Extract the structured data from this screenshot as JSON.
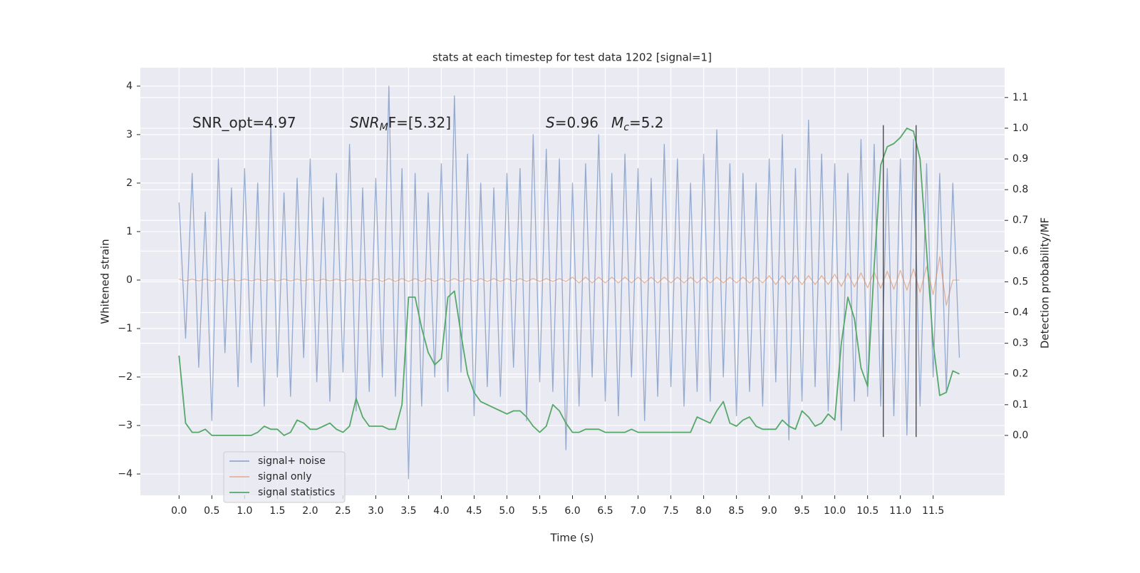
{
  "chart_data": {
    "type": "line",
    "title": "stats at each timestep for test data 1202 [signal=1]",
    "xlabel": "Time (s)",
    "ylabel": "Whitened strain",
    "y2label": "Detection probability/MF",
    "annotations": [
      {
        "text": "SNR_opt=4.97"
      },
      {
        "text": "SNR",
        "sub": "M",
        "tail": "F=[5.32]"
      },
      {
        "text": "S",
        "tail": "=0.96"
      },
      {
        "text": "M",
        "sub": "c",
        "tail": "=5.2"
      }
    ],
    "xlim": [
      -0.59,
      12.59
    ],
    "ylim": [
      -4.44,
      4.38
    ],
    "y2lim": [
      -0.195,
      1.197
    ],
    "xticks": [
      {
        "value": 0,
        "label": "0.0"
      },
      {
        "value": 0.5,
        "label": "0.5"
      },
      {
        "value": 1,
        "label": "1.0"
      },
      {
        "value": 1.5,
        "label": "1.5"
      },
      {
        "value": 2,
        "label": "2.0"
      },
      {
        "value": 2.5,
        "label": "2.5"
      },
      {
        "value": 3,
        "label": "3.0"
      },
      {
        "value": 3.5,
        "label": "3.5"
      },
      {
        "value": 4,
        "label": "4.0"
      },
      {
        "value": 4.5,
        "label": "4.5"
      },
      {
        "value": 5,
        "label": "5.0"
      },
      {
        "value": 5.5,
        "label": "5.5"
      },
      {
        "value": 6,
        "label": "6.0"
      },
      {
        "value": 6.5,
        "label": "6.5"
      },
      {
        "value": 7,
        "label": "7.0"
      },
      {
        "value": 7.5,
        "label": "7.5"
      },
      {
        "value": 8,
        "label": "8.0"
      },
      {
        "value": 8.5,
        "label": "8.5"
      },
      {
        "value": 9,
        "label": "9.0"
      },
      {
        "value": 9.5,
        "label": "9.5"
      },
      {
        "value": 10,
        "label": "10.0"
      },
      {
        "value": 10.5,
        "label": "10.5"
      },
      {
        "value": 11,
        "label": "11.0"
      },
      {
        "value": 11.5,
        "label": "11.5"
      }
    ],
    "yticks": [
      {
        "value": -4,
        "label": "−4"
      },
      {
        "value": -3,
        "label": "−3"
      },
      {
        "value": -2,
        "label": "−2"
      },
      {
        "value": -1,
        "label": "−1"
      },
      0,
      1,
      2,
      3,
      4
    ],
    "y2ticks": [
      {
        "value": 0,
        "label": "0.0"
      },
      {
        "value": 0.1,
        "label": "0.1"
      },
      {
        "value": 0.2,
        "label": "0.2"
      },
      {
        "value": 0.3,
        "label": "0.3"
      },
      {
        "value": 0.4,
        "label": "0.4"
      },
      {
        "value": 0.5,
        "label": "0.5"
      },
      {
        "value": 0.6,
        "label": "0.6"
      },
      {
        "value": 0.7,
        "label": "0.7"
      },
      {
        "value": 0.8,
        "label": "0.8"
      },
      {
        "value": 0.9,
        "label": "0.9"
      },
      {
        "value": 1.0,
        "label": "1.0"
      },
      {
        "value": 1.1,
        "label": "1.1"
      }
    ],
    "grid": true,
    "legend": "lower left",
    "x": [
      0,
      0.1,
      0.2,
      0.3,
      0.4,
      0.5,
      0.6,
      0.7,
      0.8,
      0.9,
      1,
      1.1,
      1.2,
      1.3,
      1.4,
      1.5,
      1.6,
      1.7,
      1.8,
      1.9,
      2,
      2.1,
      2.2,
      2.3,
      2.4,
      2.5,
      2.6,
      2.7,
      2.8,
      2.9,
      3,
      3.1,
      3.2,
      3.3,
      3.4,
      3.5,
      3.6,
      3.7,
      3.8,
      3.9,
      4,
      4.1,
      4.2,
      4.3,
      4.4,
      4.5,
      4.6,
      4.7,
      4.8,
      4.9,
      5,
      5.1,
      5.2,
      5.3,
      5.4,
      5.5,
      5.6,
      5.7,
      5.8,
      5.9,
      6,
      6.1,
      6.2,
      6.3,
      6.4,
      6.5,
      6.6,
      6.7,
      6.8,
      6.9,
      7,
      7.1,
      7.2,
      7.3,
      7.4,
      7.5,
      7.6,
      7.7,
      7.8,
      7.9,
      8,
      8.1,
      8.2,
      8.3,
      8.4,
      8.5,
      8.6,
      8.7,
      8.8,
      8.9,
      9,
      9.1,
      9.2,
      9.3,
      9.4,
      9.5,
      9.6,
      9.7,
      9.8,
      9.9,
      10,
      10.1,
      10.2,
      10.3,
      10.4,
      10.5,
      10.6,
      10.7,
      10.8,
      10.9,
      11,
      11.1,
      11.2,
      11.3,
      11.4,
      11.5,
      11.6,
      11.7,
      11.8,
      11.9
    ],
    "series": [
      {
        "name": "signal+ noise",
        "color": "#4c72b0",
        "values": [
          1.6,
          -1.2,
          2.2,
          -1.8,
          1.4,
          -2.9,
          2.5,
          -1.5,
          1.9,
          -2.2,
          2.3,
          -1.7,
          2.0,
          -2.6,
          3.3,
          -2.0,
          1.8,
          -2.4,
          2.1,
          -1.6,
          2.5,
          -2.1,
          1.7,
          -2.5,
          2.2,
          -1.9,
          2.8,
          -2.7,
          1.9,
          -2.3,
          2.1,
          -2.0,
          4.0,
          -2.4,
          2.3,
          -4.1,
          2.2,
          -2.6,
          1.8,
          -2.0,
          2.4,
          -2.3,
          3.8,
          -1.9,
          2.6,
          -2.8,
          2.0,
          -2.2,
          1.9,
          -2.4,
          2.2,
          -1.8,
          2.3,
          -2.9,
          3.0,
          -2.1,
          2.7,
          -2.3,
          2.5,
          -3.5,
          2.0,
          -2.6,
          2.4,
          -2.0,
          3.0,
          -2.5,
          2.2,
          -2.8,
          2.6,
          -2.0,
          2.3,
          -2.9,
          2.1,
          -2.4,
          2.8,
          -2.2,
          2.5,
          -2.6,
          2.0,
          -2.3,
          2.6,
          -2.5,
          3.1,
          -2.0,
          2.4,
          -2.8,
          2.2,
          -2.3,
          2.0,
          -2.6,
          2.5,
          -2.1,
          3.0,
          -3.3,
          2.3,
          -2.5,
          3.3,
          -2.2,
          2.6,
          -2.7,
          2.4,
          -3.1,
          2.2,
          -2.5,
          2.9,
          -2.4,
          2.8,
          -2.6,
          2.3,
          -2.8,
          2.5,
          -3.2,
          2.9,
          -2.6,
          2.4,
          -2.0,
          2.2,
          -2.3,
          2.0,
          -1.6
        ]
      },
      {
        "name": "signal only",
        "color": "#dd8452",
        "values": [
          0.02,
          -0.02,
          0.02,
          -0.02,
          0.02,
          -0.02,
          0.02,
          -0.02,
          0.02,
          -0.02,
          0.02,
          -0.02,
          0.02,
          -0.02,
          0.02,
          -0.02,
          0.02,
          -0.02,
          0.02,
          -0.02,
          0.02,
          -0.02,
          0.02,
          -0.02,
          0.02,
          -0.02,
          0.02,
          -0.02,
          0.02,
          -0.02,
          0.03,
          -0.03,
          0.03,
          -0.03,
          0.03,
          -0.03,
          0.03,
          -0.03,
          0.03,
          -0.03,
          0.03,
          -0.03,
          0.03,
          -0.03,
          0.03,
          -0.03,
          0.03,
          -0.03,
          0.03,
          -0.03,
          0.03,
          -0.03,
          0.03,
          -0.03,
          0.03,
          -0.03,
          0.03,
          -0.03,
          0.03,
          -0.03,
          0.06,
          -0.06,
          0.06,
          -0.06,
          0.06,
          -0.06,
          0.06,
          -0.06,
          0.06,
          -0.06,
          0.06,
          -0.06,
          0.06,
          -0.06,
          0.06,
          -0.06,
          0.06,
          -0.06,
          0.06,
          -0.06,
          0.06,
          -0.06,
          0.06,
          -0.06,
          0.06,
          -0.06,
          0.06,
          -0.06,
          0.06,
          -0.06,
          0.09,
          -0.09,
          0.09,
          -0.09,
          0.09,
          -0.09,
          0.09,
          -0.09,
          0.09,
          -0.09,
          0.12,
          -0.13,
          0.14,
          -0.14,
          0.15,
          -0.16,
          0.17,
          -0.17,
          0.18,
          -0.19,
          0.2,
          -0.21,
          0.23,
          -0.25,
          0.28,
          -0.3,
          0.48,
          -0.52,
          0,
          0
        ]
      },
      {
        "name": "signal statistics",
        "color": "#55a868",
        "axis": "y2",
        "values": [
          0.26,
          0.04,
          0.01,
          0.01,
          0.02,
          0.0,
          0.0,
          0.0,
          0.0,
          0.0,
          0.0,
          0.0,
          0.01,
          0.03,
          0.02,
          0.02,
          0.0,
          0.01,
          0.05,
          0.04,
          0.02,
          0.02,
          0.03,
          0.04,
          0.02,
          0.01,
          0.03,
          0.12,
          0.06,
          0.03,
          0.03,
          0.03,
          0.02,
          0.02,
          0.1,
          0.45,
          0.45,
          0.35,
          0.27,
          0.23,
          0.25,
          0.45,
          0.47,
          0.33,
          0.2,
          0.14,
          0.11,
          0.1,
          0.09,
          0.08,
          0.07,
          0.08,
          0.08,
          0.06,
          0.03,
          0.01,
          0.03,
          0.1,
          0.08,
          0.04,
          0.01,
          0.01,
          0.02,
          0.02,
          0.02,
          0.01,
          0.01,
          0.01,
          0.01,
          0.02,
          0.01,
          0.01,
          0.01,
          0.01,
          0.01,
          0.01,
          0.01,
          0.01,
          0.01,
          0.06,
          0.05,
          0.04,
          0.08,
          0.11,
          0.04,
          0.03,
          0.05,
          0.06,
          0.03,
          0.02,
          0.02,
          0.02,
          0.05,
          0.03,
          0.02,
          0.08,
          0.06,
          0.03,
          0.04,
          0.07,
          0.05,
          0.3,
          0.45,
          0.38,
          0.22,
          0.16,
          0.55,
          0.88,
          0.94,
          0.95,
          0.97,
          1.0,
          0.99,
          0.9,
          0.6,
          0.3,
          0.13,
          0.14,
          0.21,
          0.2
        ]
      }
    ],
    "vlines": [
      10.74,
      11.24
    ],
    "vline_range": [
      -0.005,
      1.01
    ]
  }
}
